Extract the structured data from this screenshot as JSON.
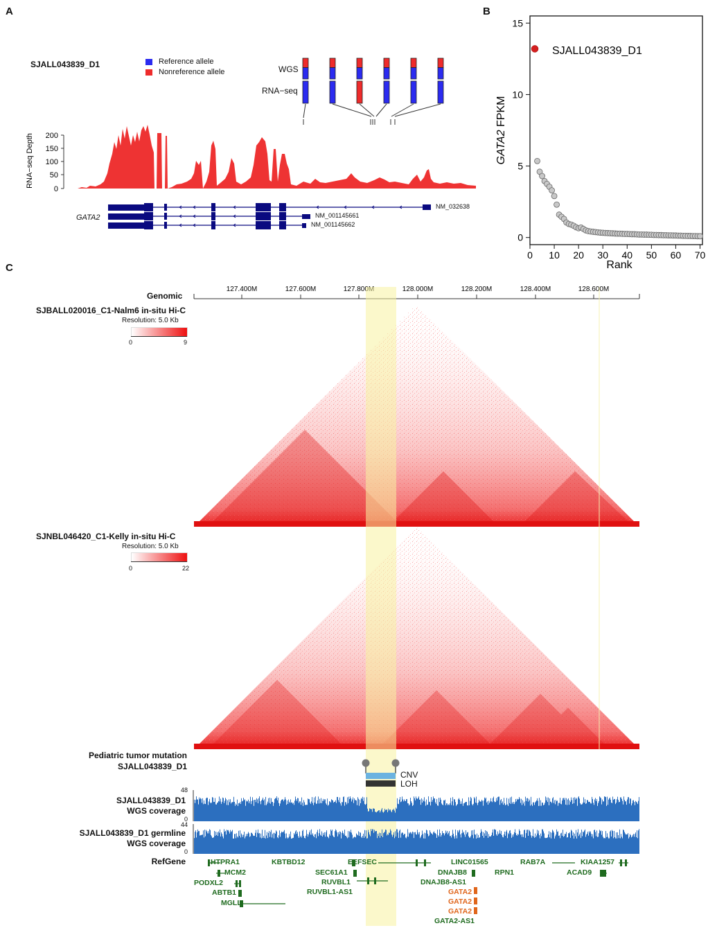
{
  "panels": {
    "a": "A",
    "b": "B",
    "c": "C"
  },
  "panel_a": {
    "sample": "SJALL043839_D1",
    "legend": [
      {
        "label": "Reference allele",
        "color": "#2b2bf0"
      },
      {
        "label": "Nonreference allele",
        "color": "#ee2b2b"
      }
    ],
    "wgs_label": "WGS",
    "rnaseq_label": "RNA−seq",
    "depth_axis_label": "RNA−seq Depth",
    "depth_ticks": [
      "0",
      "50",
      "100",
      "150",
      "200"
    ],
    "gene": "GATA2",
    "transcripts": [
      "NM_032638",
      "NM_001145661",
      "NM_001145662"
    ],
    "allele_fraction_wgs_nonref": [
      0.45,
      0.45,
      0.45,
      0.45,
      0.45,
      0.45
    ],
    "allele_fraction_rna_nonref": [
      0.0,
      0.0,
      1.0,
      0.0,
      0.0,
      0.0
    ]
  },
  "chart_data": {
    "type": "scatter",
    "title": "",
    "xlabel": "Rank",
    "ylabel_italic": "GATA2",
    "ylabel_rest": " FPKM",
    "xlim": [
      0,
      71
    ],
    "ylim": [
      -0.5,
      15.5
    ],
    "xticks": [
      0,
      10,
      20,
      30,
      40,
      50,
      60,
      70
    ],
    "yticks": [
      0,
      5,
      10,
      15
    ],
    "highlight": {
      "label": "SJALL043839_D1",
      "x": 2,
      "y": 13.2,
      "color": "#d41f1f"
    },
    "x": [
      3,
      4,
      5,
      6,
      7,
      8,
      9,
      10,
      11,
      12,
      13,
      14,
      15,
      16,
      17,
      18,
      19,
      20,
      21,
      22,
      23,
      24,
      25,
      26,
      27,
      28,
      29,
      30,
      31,
      32,
      33,
      34,
      35,
      36,
      37,
      38,
      39,
      40,
      41,
      42,
      43,
      44,
      45,
      46,
      47,
      48,
      49,
      50,
      51,
      52,
      53,
      54,
      55,
      56,
      57,
      58,
      59,
      60,
      61,
      62,
      63,
      64,
      65,
      66,
      67,
      68,
      69,
      70
    ],
    "y": [
      5.35,
      4.6,
      4.3,
      3.95,
      3.75,
      3.55,
      3.3,
      2.9,
      2.3,
      1.6,
      1.45,
      1.3,
      1.05,
      0.95,
      0.9,
      0.82,
      0.72,
      0.65,
      0.7,
      0.6,
      0.5,
      0.45,
      0.42,
      0.4,
      0.38,
      0.36,
      0.34,
      0.33,
      0.32,
      0.31,
      0.3,
      0.29,
      0.28,
      0.27,
      0.27,
      0.26,
      0.25,
      0.25,
      0.24,
      0.23,
      0.23,
      0.22,
      0.21,
      0.21,
      0.2,
      0.2,
      0.19,
      0.19,
      0.18,
      0.18,
      0.17,
      0.17,
      0.16,
      0.16,
      0.15,
      0.15,
      0.14,
      0.14,
      0.13,
      0.13,
      0.12,
      0.12,
      0.11,
      0.11,
      0.1,
      0.1,
      0.09,
      0.09
    ]
  },
  "panel_c": {
    "genomic_label": "Genomic",
    "axis_ticks": [
      "127.400M",
      "127.600M",
      "127.800M",
      "128.000M",
      "128.200M",
      "128.400M",
      "128.600M"
    ],
    "hic1": {
      "title": "SJBALL020016_C1-Nalm6 in-situ Hi-C",
      "resolution": "Resolution: 5.0 Kb",
      "min": "0",
      "max": "9"
    },
    "hic2": {
      "title": "SJNBL046420_C1-Kelly in-situ Hi-C",
      "resolution": "Resolution: 5.0 Kb",
      "min": "0",
      "max": "22"
    },
    "mutation_label_1": "Pediatric tumor mutation",
    "mutation_label_2": "SJALL043839_D1",
    "cnv_label": "CNV",
    "loh_label": "LOH",
    "cov1_label_1": "SJALL043839_D1",
    "cov1_label_2": "WGS coverage",
    "cov1_max": "48",
    "cov1_min": "0",
    "cov2_label_1": "SJALL043839_D1 germline",
    "cov2_label_2": "WGS coverage",
    "cov2_max": "44",
    "cov2_min": "0",
    "refgene_label": "RefGene",
    "genes": {
      "htpra1": "HTPRA1",
      "mcm2": "MCM2",
      "podxl2": "PODXL2",
      "abtb1": "ABTB1",
      "mgll": "MGLL",
      "kbtbd12": "KBTBD12",
      "sec61a1": "SEC61A1",
      "ruvbl1": "RUVBL1",
      "ruvbl1as1": "RUVBL1-AS1",
      "eefsec": "EEFSEC",
      "dnajb8": "DNAJB8",
      "dnajb8as1": "DNAJB8-AS1",
      "gata2a": "GATA2",
      "gata2b": "GATA2",
      "gata2c": "GATA2",
      "gata2as1": "GATA2-AS1",
      "linc01565": "LINC01565",
      "rpn1": "RPN1",
      "rab7a": "RAB7A",
      "kiaa1257": "KIAA1257",
      "acad9": "ACAD9"
    }
  }
}
